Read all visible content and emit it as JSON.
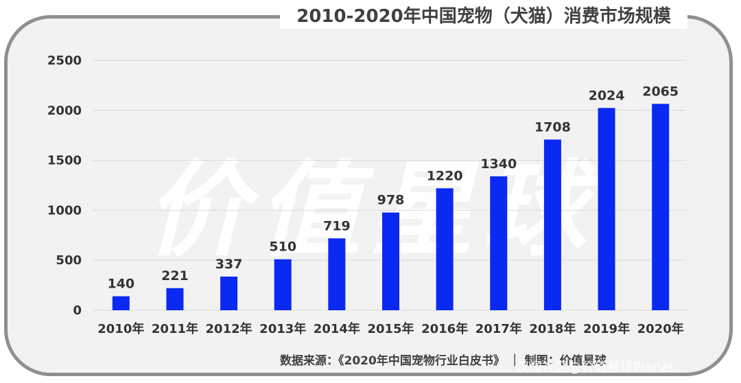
{
  "chart_data": {
    "type": "bar",
    "title": "2010-2020年中国宠物（犬猫）消费市场规模",
    "categories": [
      "2010年",
      "2011年",
      "2012年",
      "2013年",
      "2014年",
      "2015年",
      "2016年",
      "2017年",
      "2018年",
      "2019年",
      "2020年"
    ],
    "values": [
      140,
      221,
      337,
      510,
      719,
      978,
      1220,
      1340,
      1708,
      2024,
      2065
    ],
    "data_labels": [
      "140",
      "221",
      "337",
      "510",
      "719",
      "978",
      "1220",
      "1340",
      "1708",
      "2024",
      "2065"
    ],
    "yticks": [
      "0",
      "500",
      "1000",
      "1500",
      "2000",
      "2500"
    ],
    "ytick_values": [
      0,
      500,
      1000,
      1500,
      2000,
      2500
    ],
    "ylim": [
      0,
      2500
    ],
    "xlabel": "",
    "ylabel": "",
    "grid": true,
    "bar_color": "#0a29f2",
    "grid_color": "#d9d9d9"
  },
  "source": "数据来源：《2020年中国宠物行业白皮书》 ｜ 制图：价值星球",
  "watermark_text": "价值星球",
  "corner_mark": "汉闻社区@价值星球Planet"
}
